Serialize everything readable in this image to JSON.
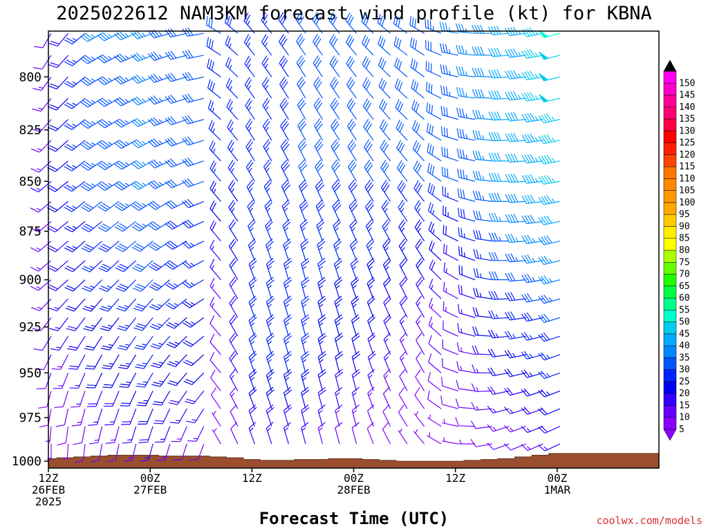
{
  "chart_data": {
    "type": "wind-barb-time-height",
    "title": "2025022612 NAM3KM forecast wind profile (kt) for KBNA",
    "xlabel": "Forecast Time (UTC)",
    "ylabel": "",
    "credit": "coolwx.com/models",
    "units": "kt",
    "x_range_hours": [
      0,
      36
    ],
    "x_ticks": [
      {
        "hour": 0,
        "lines": [
          "12Z",
          "26FEB",
          "2025"
        ]
      },
      {
        "hour": 6,
        "lines": [
          "00Z",
          "27FEB"
        ]
      },
      {
        "hour": 12,
        "lines": [
          "12Z"
        ]
      },
      {
        "hour": 18,
        "lines": [
          "00Z",
          "28FEB"
        ]
      },
      {
        "hour": 24,
        "lines": [
          "12Z"
        ]
      },
      {
        "hour": 30,
        "lines": [
          "00Z",
          "1MAR"
        ]
      }
    ],
    "y_range_hpa": [
      1004,
      779
    ],
    "y_scale": "log-pressure",
    "y_ticks": [
      800,
      825,
      850,
      875,
      900,
      925,
      950,
      975,
      1000
    ],
    "levels_hpa": [
      780,
      790,
      800,
      810,
      820,
      830,
      840,
      850,
      860,
      870,
      880,
      890,
      900,
      910,
      920,
      930,
      940,
      950,
      960,
      970,
      980,
      990
    ],
    "times_hours": [
      0,
      1,
      2,
      3,
      4,
      5,
      6,
      7,
      8,
      9,
      10,
      11,
      12,
      13,
      14,
      15,
      16,
      17,
      18,
      19,
      20,
      21,
      22,
      23,
      24,
      25,
      26,
      27,
      28,
      29,
      30
    ],
    "time_step_note": "",
    "wind_keyframes": [
      {
        "hour": 0,
        "lev": [
          [
            780,
            210,
            12
          ],
          [
            850,
            230,
            15
          ],
          [
            900,
            230,
            14
          ],
          [
            950,
            200,
            10
          ],
          [
            990,
            180,
            5
          ]
        ]
      },
      {
        "hour": 3,
        "lev": [
          [
            780,
            240,
            35
          ],
          [
            850,
            235,
            33
          ],
          [
            900,
            225,
            25
          ],
          [
            950,
            205,
            20
          ],
          [
            990,
            190,
            10
          ]
        ]
      },
      {
        "hour": 6,
        "lev": [
          [
            780,
            250,
            35
          ],
          [
            850,
            240,
            35
          ],
          [
            900,
            225,
            30
          ],
          [
            950,
            210,
            25
          ],
          [
            990,
            195,
            15
          ]
        ]
      },
      {
        "hour": 9,
        "lev": [
          [
            780,
            260,
            30
          ],
          [
            850,
            250,
            30
          ],
          [
            900,
            240,
            25
          ],
          [
            950,
            225,
            20
          ],
          [
            990,
            200,
            10
          ]
        ]
      },
      {
        "hour": 10,
        "lev": [
          [
            780,
            300,
            30
          ],
          [
            850,
            320,
            25
          ],
          [
            900,
            320,
            15
          ],
          [
            950,
            320,
            10
          ],
          [
            990,
            330,
            5
          ]
        ]
      },
      {
        "hour": 12,
        "lev": [
          [
            780,
            320,
            25
          ],
          [
            850,
            330,
            25
          ],
          [
            900,
            340,
            25
          ],
          [
            950,
            340,
            25
          ],
          [
            990,
            340,
            15
          ]
        ]
      },
      {
        "hour": 15,
        "lev": [
          [
            780,
            325,
            30
          ],
          [
            850,
            335,
            30
          ],
          [
            900,
            345,
            25
          ],
          [
            950,
            345,
            25
          ],
          [
            990,
            345,
            15
          ]
        ]
      },
      {
        "hour": 18,
        "lev": [
          [
            780,
            320,
            30
          ],
          [
            850,
            330,
            30
          ],
          [
            900,
            340,
            25
          ],
          [
            950,
            345,
            20
          ],
          [
            990,
            345,
            10
          ]
        ]
      },
      {
        "hour": 22,
        "lev": [
          [
            780,
            300,
            30
          ],
          [
            850,
            320,
            30
          ],
          [
            900,
            330,
            20
          ],
          [
            950,
            330,
            10
          ],
          [
            990,
            320,
            5
          ]
        ]
      },
      {
        "hour": 24,
        "lev": [
          [
            780,
            280,
            35
          ],
          [
            850,
            290,
            30
          ],
          [
            900,
            300,
            15
          ],
          [
            950,
            290,
            10
          ],
          [
            990,
            280,
            5
          ]
        ]
      },
      {
        "hour": 27,
        "lev": [
          [
            780,
            265,
            40
          ],
          [
            850,
            270,
            40
          ],
          [
            900,
            270,
            30
          ],
          [
            950,
            260,
            20
          ],
          [
            990,
            250,
            10
          ]
        ]
      },
      {
        "hour": 30,
        "lev": [
          [
            780,
            255,
            50
          ],
          [
            850,
            260,
            45
          ],
          [
            900,
            255,
            35
          ],
          [
            950,
            250,
            25
          ],
          [
            990,
            245,
            15
          ]
        ]
      }
    ],
    "surface_pressure_hpa": [
      [
        0,
        998.5
      ],
      [
        1,
        998.0
      ],
      [
        2,
        997.5
      ],
      [
        3,
        997.0
      ],
      [
        4,
        996.5
      ],
      [
        5,
        996.5
      ],
      [
        6,
        996.5
      ],
      [
        7,
        997.0
      ],
      [
        8,
        997.0
      ],
      [
        9,
        997.0
      ],
      [
        10,
        997.5
      ],
      [
        11,
        998.0
      ],
      [
        12,
        999.0
      ],
      [
        13,
        999.5
      ],
      [
        14,
        999.5
      ],
      [
        15,
        999.0
      ],
      [
        16,
        999.0
      ],
      [
        17,
        998.5
      ],
      [
        18,
        998.5
      ],
      [
        19,
        999.0
      ],
      [
        20,
        999.5
      ],
      [
        21,
        1000.0
      ],
      [
        22,
        1000.0
      ],
      [
        23,
        1000.0
      ],
      [
        24,
        1000.0
      ],
      [
        25,
        999.5
      ],
      [
        26,
        999.0
      ],
      [
        27,
        998.5
      ],
      [
        28,
        997.5
      ],
      [
        29,
        996.5
      ],
      [
        30,
        995.5
      ]
    ],
    "ground_color": "#9a4e2e",
    "colorbar": {
      "ticks": [
        5,
        10,
        15,
        20,
        25,
        30,
        35,
        40,
        45,
        50,
        55,
        60,
        65,
        70,
        75,
        80,
        85,
        90,
        95,
        100,
        105,
        110,
        115,
        120,
        125,
        130,
        135,
        140,
        145,
        150
      ],
      "colors": [
        "#8800ff",
        "#6600ff",
        "#3300ff",
        "#0000ee",
        "#0022ff",
        "#0055ff",
        "#0088ff",
        "#00aaff",
        "#00ccee",
        "#00ffcc",
        "#00ff88",
        "#00ff44",
        "#22ff00",
        "#66ff00",
        "#aaff00",
        "#ffff00",
        "#ffee00",
        "#ffcc00",
        "#ffaa00",
        "#ff9900",
        "#ff8800",
        "#ff7700",
        "#ff4400",
        "#ff2200",
        "#ff0000",
        "#ff0044",
        "#ff0077",
        "#ff0099",
        "#ff00cc",
        "#ff00ee"
      ],
      "min_arrow_color": "#8800ff",
      "max_arrow_color": "#000000"
    }
  }
}
